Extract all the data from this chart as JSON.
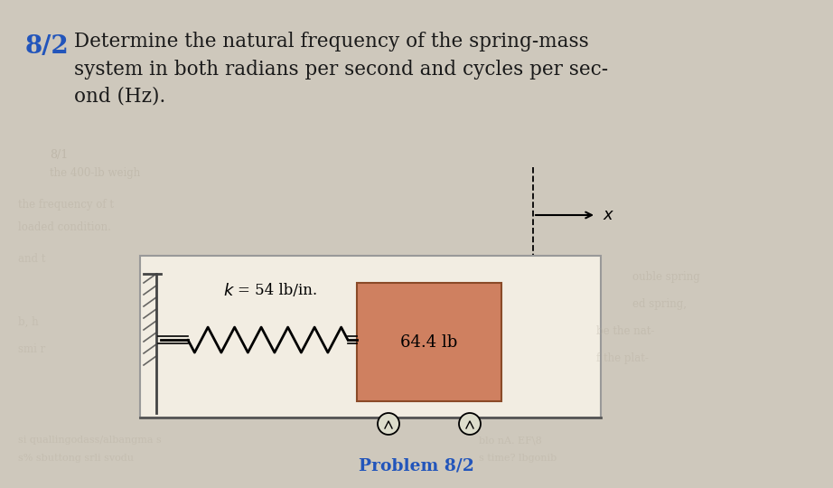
{
  "bg_color": "#cec8bc",
  "title_number": "8/2",
  "title_number_color": "#2255bb",
  "title_text": "Determine the natural frequency of the spring-mass\nsystem in both radians per second and cycles per sec-\nond (Hz).",
  "title_text_color": "#1a1a1a",
  "problem_label": "Problem 8/2",
  "problem_label_color": "#2255bb",
  "spring_label_k": "k",
  "spring_label_rest": " = 54 lb/in.",
  "mass_label": "64.4 lb",
  "mass_color": "#cf8060",
  "mass_border_color": "#8a4a28",
  "diagram_bg": "#f2ede2",
  "diagram_border": "#999999",
  "floor_color": "#555555",
  "wall_color": "#444444",
  "wheel_color": "#ddddcc",
  "faded_text_color": "#b0a898"
}
